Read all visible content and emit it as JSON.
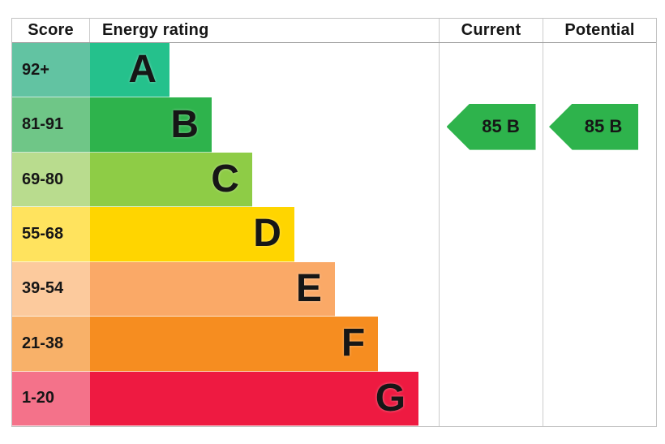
{
  "chart_data": {
    "type": "bar",
    "orientation": "horizontal",
    "title": "Energy rating",
    "categories": [
      "A",
      "B",
      "C",
      "D",
      "E",
      "F",
      "G"
    ],
    "score_bands": [
      "92+",
      "81-91",
      "69-80",
      "55-68",
      "39-54",
      "21-38",
      "1-20"
    ],
    "bar_relative_lengths": [
      0.228,
      0.349,
      0.465,
      0.586,
      0.702,
      0.826,
      0.942
    ],
    "bar_colors": [
      "#25c18c",
      "#2eb34c",
      "#8ecc46",
      "#ffd500",
      "#faa967",
      "#f68d20",
      "#ee1a41"
    ],
    "legend_position": "none",
    "grid": false,
    "current": {
      "score": 85,
      "rating": "B"
    },
    "potential": {
      "score": 85,
      "rating": "B"
    }
  },
  "header": {
    "score": "Score",
    "energy_rating": "Energy rating",
    "current": "Current",
    "potential": "Potential"
  },
  "rows": [
    {
      "score": "92+",
      "letter": "A",
      "bar_color": "#25c18c",
      "score_bg": "#62c3a2",
      "bar_width": "22.8%"
    },
    {
      "score": "81-91",
      "letter": "B",
      "bar_color": "#2eb34c",
      "score_bg": "#6fc687",
      "bar_width": "34.9%"
    },
    {
      "score": "69-80",
      "letter": "C",
      "bar_color": "#8ecc46",
      "score_bg": "#b9dc8e",
      "bar_width": "46.5%"
    },
    {
      "score": "55-68",
      "letter": "D",
      "bar_color": "#ffd500",
      "score_bg": "#ffe35e",
      "bar_width": "58.6%"
    },
    {
      "score": "39-54",
      "letter": "E",
      "bar_color": "#faa967",
      "score_bg": "#fcca9d",
      "bar_width": "70.2%"
    },
    {
      "score": "21-38",
      "letter": "F",
      "bar_color": "#f68d20",
      "score_bg": "#f8b169",
      "bar_width": "82.6%"
    },
    {
      "score": "1-20",
      "letter": "G",
      "bar_color": "#ee1a41",
      "score_bg": "#f4728a",
      "bar_width": "94.2%"
    }
  ],
  "current_arrow": {
    "label": "85 B",
    "color": "#2eb34c"
  },
  "potential_arrow": {
    "label": "85 B",
    "color": "#2eb34c"
  }
}
